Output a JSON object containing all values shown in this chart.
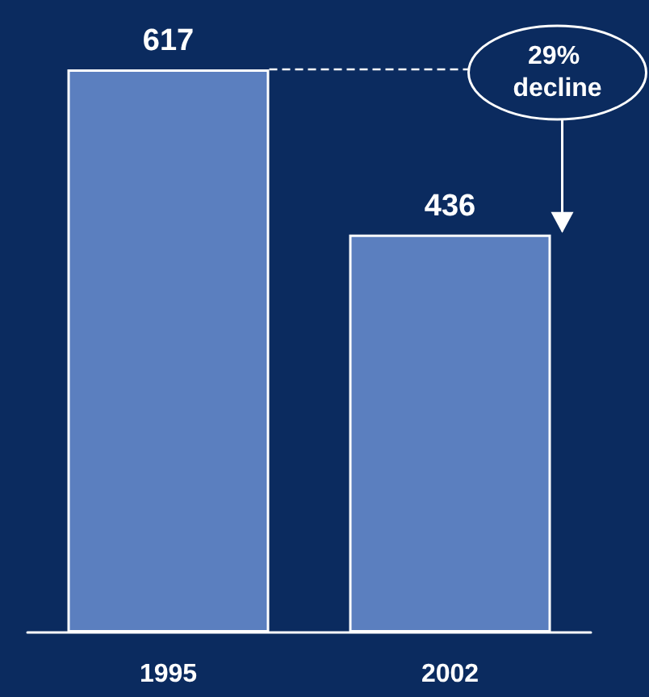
{
  "chart_data": {
    "type": "bar",
    "categories": [
      "1995",
      "2002"
    ],
    "values": [
      617,
      436
    ],
    "color": "#5b7fbf",
    "data_labels": true,
    "annotations": [
      "29% decline"
    ]
  }
}
